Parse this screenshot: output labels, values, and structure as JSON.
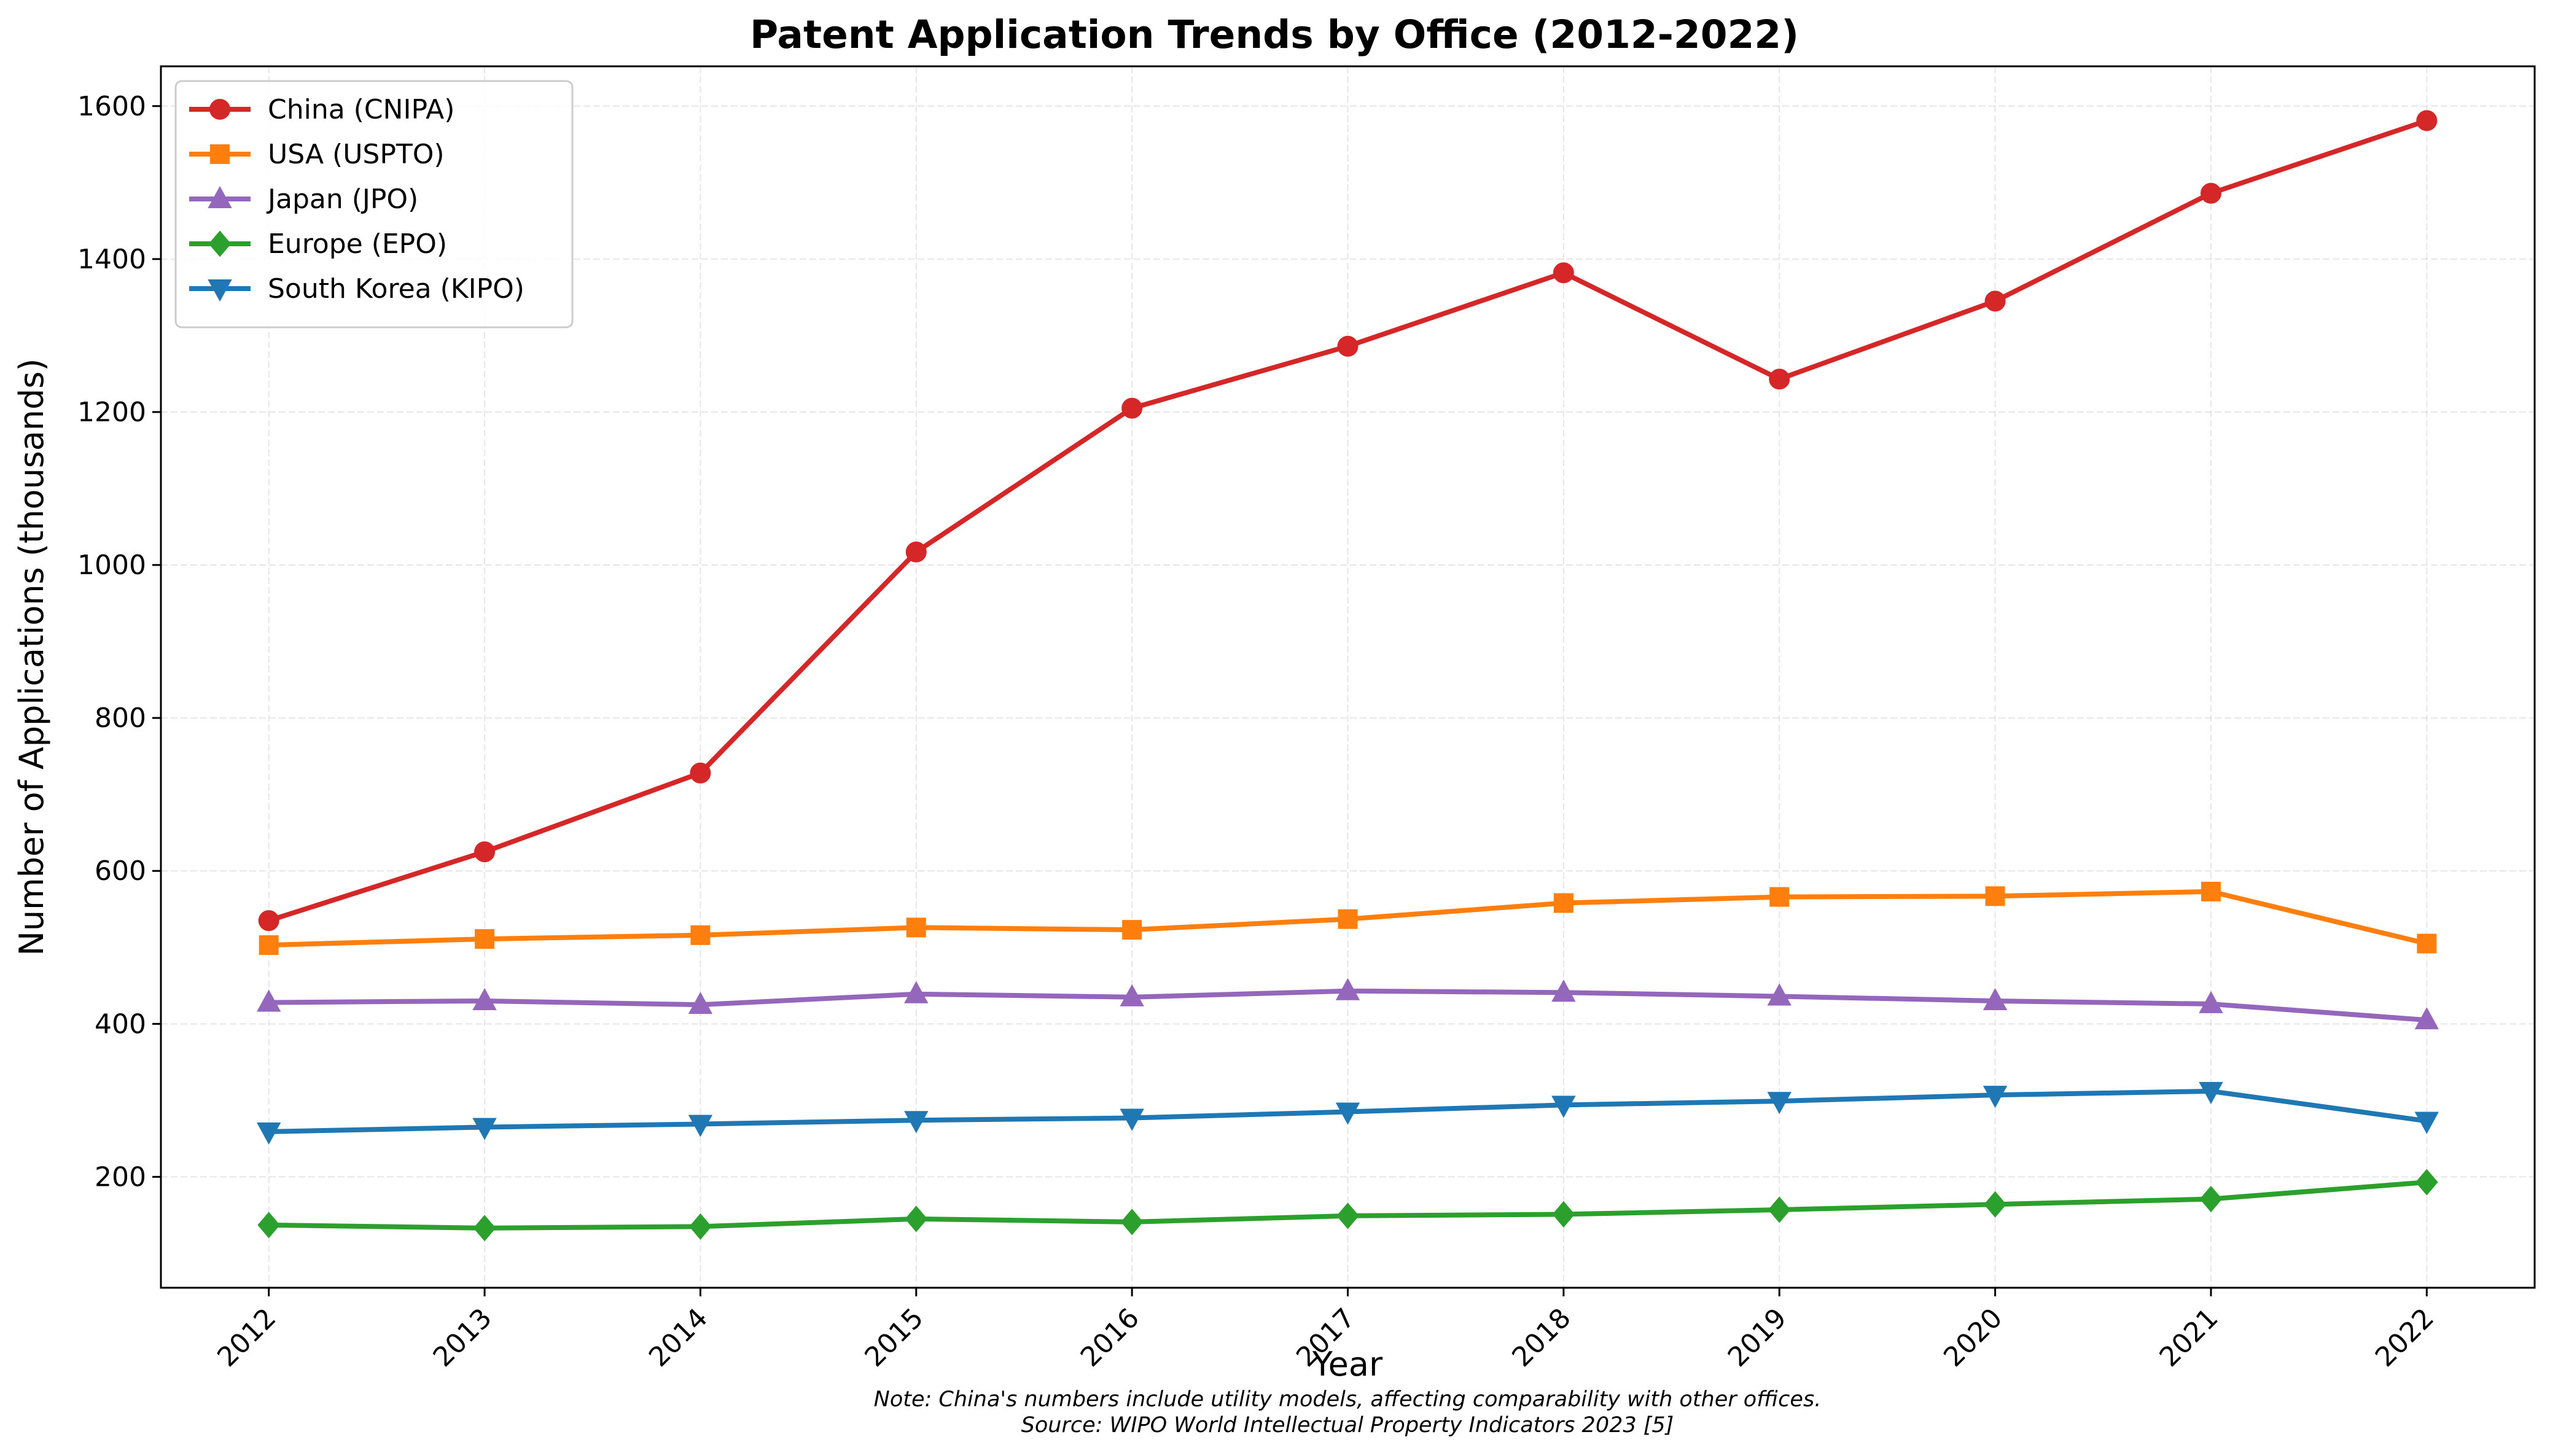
{
  "chart_data": {
    "type": "line",
    "title": "Patent Application Trends by Office (2012-2022)",
    "xlabel": "Year",
    "ylabel": "Number of Applications (thousands)",
    "x": [
      2012,
      2013,
      2014,
      2015,
      2016,
      2017,
      2018,
      2019,
      2020,
      2021,
      2022
    ],
    "ylim": [
      55,
      1652
    ],
    "yticks": [
      200,
      400,
      600,
      800,
      1000,
      1200,
      1400,
      1600
    ],
    "grid": true,
    "legend_position": "upper-left",
    "series": [
      {
        "name": "China (CNIPA)",
        "color": "#d62728",
        "marker": "circle",
        "values": [
          535,
          625,
          728,
          1017,
          1205,
          1286,
          1382,
          1243,
          1345,
          1486,
          1581
        ]
      },
      {
        "name": "USA (USPTO)",
        "color": "#ff7f0e",
        "marker": "square",
        "values": [
          503,
          511,
          516,
          526,
          523,
          537,
          558,
          566,
          567,
          573,
          505
        ]
      },
      {
        "name": "Japan (JPO)",
        "color": "#9467bd",
        "marker": "triangle-up",
        "values": [
          428,
          430,
          425,
          439,
          435,
          443,
          441,
          436,
          430,
          426,
          405
        ]
      },
      {
        "name": "Europe (EPO)",
        "color": "#2ca02c",
        "marker": "diamond",
        "values": [
          137,
          133,
          135,
          145,
          141,
          149,
          151,
          157,
          164,
          171,
          193
        ]
      },
      {
        "name": "South Korea (KIPO)",
        "color": "#1f77b4",
        "marker": "triangle-down",
        "values": [
          259,
          265,
          269,
          274,
          277,
          285,
          294,
          299,
          307,
          312,
          273
        ]
      }
    ],
    "annotations": [
      "Note: China's numbers include utility models, affecting comparability with other offices.",
      "Source: WIPO World Intellectual Property Indicators 2023 [5]"
    ]
  }
}
